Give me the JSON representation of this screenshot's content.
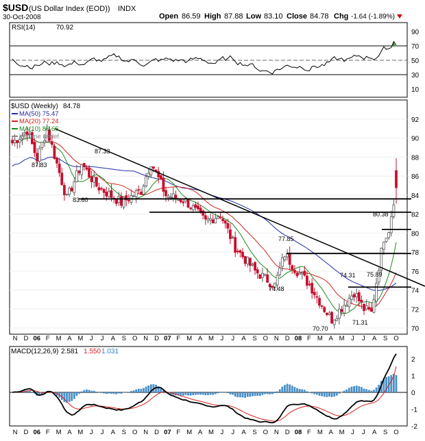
{
  "header": {
    "symbol": "$USD",
    "name": "(US Dollar Index (EOD))",
    "exchange": "INDX",
    "date": "30-Oct-2008",
    "open_label": "Open",
    "open": "86.59",
    "high_label": "High",
    "high": "87.88",
    "low_label": "Low",
    "low": "83.10",
    "close_label": "Close",
    "close": "84.78",
    "chg_label": "Chg",
    "chg": "-1.64 (-1.89%)",
    "chg_color": "#cc0000"
  },
  "rsi": {
    "label": "RSI(14)",
    "value": "70.92",
    "ticks": [
      "90",
      "70",
      "50",
      "30",
      "10"
    ]
  },
  "price": {
    "title": "$USD (Weekly)",
    "last": "84.78",
    "legend": [
      {
        "label": "MA(50)",
        "value": "75.47",
        "color": "#1f2aa8"
      },
      {
        "label": "MA(20)",
        "value": "77.24",
        "color": "#d2201c"
      },
      {
        "label": "MA(10)",
        "value": "80.66",
        "color": "#1a8a1a"
      },
      {
        "label": "Volume undef",
        "value": "",
        "color": "#888888"
      }
    ],
    "ticks": [
      "92",
      "90",
      "88",
      "86",
      "84",
      "82",
      "80",
      "78",
      "76",
      "74",
      "72",
      "70"
    ],
    "annotations": [
      "87.83",
      "87.33",
      "83.60",
      "77.85",
      "74.48",
      "70.70",
      "74.31",
      "71.31",
      "75.89",
      "80.38"
    ],
    "up_color": "#555555",
    "down_color": "#c8102e"
  },
  "macd": {
    "label": "MACD(12,26,9)",
    "v1": "2.581",
    "v2": "1.550",
    "v3": "1.031",
    "v1_color": "#000000",
    "v2_color": "#d2201c",
    "v3_color": "#2a7fc0",
    "ticks": [
      "2",
      "1",
      "0",
      "-1",
      "-2"
    ]
  },
  "x_labels": [
    "N",
    "D",
    "06",
    "F",
    "M",
    "A",
    "M",
    "J",
    "J",
    "A",
    "S",
    "O",
    "N",
    "D",
    "07",
    "F",
    "M",
    "A",
    "M",
    "J",
    "J",
    "A",
    "S",
    "O",
    "N",
    "D",
    "08",
    "F",
    "M",
    "A",
    "M",
    "J",
    "J",
    "A",
    "S",
    "O"
  ],
  "chart_data": {
    "type": "candlestick",
    "title": "$USD (Weekly)",
    "period": "weekly",
    "x_range": [
      "Nov 2005",
      "Oct 2008"
    ],
    "ylim": [
      70,
      92
    ],
    "indicators": [
      "MA(50)",
      "MA(20)",
      "MA(10)",
      "RSI(14)",
      "MACD(12,26,9)"
    ],
    "latest": {
      "open": 86.59,
      "high": 87.88,
      "low": 83.1,
      "close": 84.78,
      "change": -1.64,
      "change_pct": -1.89
    },
    "price_points": [
      {
        "x": "2006-01",
        "y": 87.83
      },
      {
        "x": "2006-02",
        "y": 90.5
      },
      {
        "x": "2006-05",
        "y": 83.6
      },
      {
        "x": "2006-07",
        "y": 87.33
      },
      {
        "x": "2007-01",
        "y": 87.5
      },
      {
        "x": "2007-05",
        "y": 81.8
      },
      {
        "x": "2007-11",
        "y": 74.48
      },
      {
        "x": "2007-12",
        "y": 77.85
      },
      {
        "x": "2008-03",
        "y": 70.7
      },
      {
        "x": "2008-06",
        "y": 74.31
      },
      {
        "x": "2008-07",
        "y": 71.31
      },
      {
        "x": "2008-08",
        "y": 75.89
      },
      {
        "x": "2008-09",
        "y": 80.38
      },
      {
        "x": "2008-10",
        "y": 87.88
      }
    ],
    "horizontal_levels": [
      83.6,
      82.2,
      80.38,
      77.85,
      74.31
    ],
    "trendline": [
      {
        "x": "2006-02",
        "y": 91.0
      },
      {
        "x": "2008-10",
        "y": 75.5
      }
    ],
    "rsi_last": 70.92,
    "macd_last": {
      "macd": 2.581,
      "signal": 1.55,
      "histogram": 1.031
    }
  }
}
